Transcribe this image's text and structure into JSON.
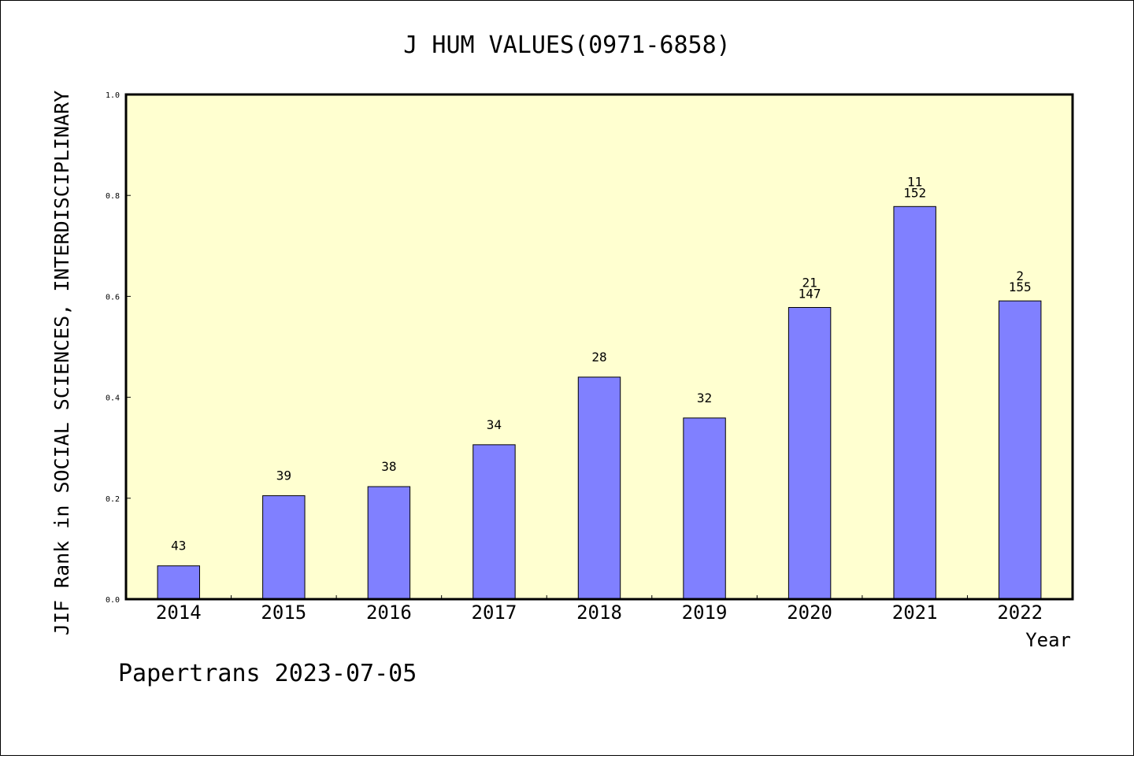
{
  "chart_data": {
    "type": "bar",
    "title": "J HUM VALUES(0971-6858)",
    "ylabel": "JIF Rank in SOCIAL SCIENCES, INTERDISCIPLINARY",
    "xlabel": "Year",
    "ylim": [
      0,
      1.0
    ],
    "yticks": [
      "0.0",
      "0.2",
      "0.4",
      "0.6",
      "0.8",
      "1.0"
    ],
    "categories": [
      "2014",
      "2015",
      "2016",
      "2017",
      "2018",
      "2019",
      "2020",
      "2021",
      "2022"
    ],
    "values": [
      0.066,
      0.205,
      0.223,
      0.306,
      0.44,
      0.359,
      0.578,
      0.778,
      0.591
    ],
    "bar_labels": [
      [
        "43"
      ],
      [
        "39"
      ],
      [
        "38"
      ],
      [
        "34"
      ],
      [
        "28"
      ],
      [
        "32"
      ],
      [
        "21",
        "147"
      ],
      [
        "11",
        "152"
      ],
      [
        "2",
        "155"
      ]
    ],
    "grid": false,
    "plot_background": "#ffffd0",
    "bar_color": "#8080ff"
  },
  "footer": "Papertrans 2023-07-05"
}
